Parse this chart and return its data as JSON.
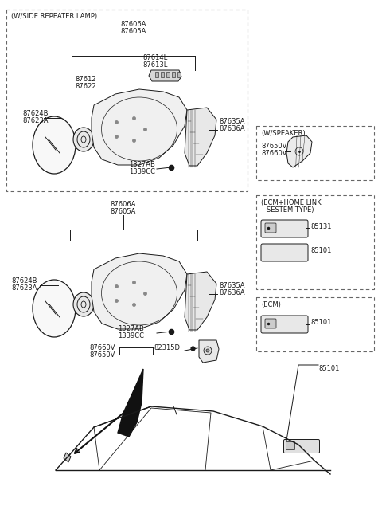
{
  "bg_color": "#ffffff",
  "line_color": "#1a1a1a",
  "dashed_color": "#666666",
  "fig_width": 4.8,
  "fig_height": 6.45,
  "dpi": 100,
  "labels": {
    "main_box_top": "(W/SIDE REPEATER LAMP)",
    "87606A_top": "87606A",
    "87605A_top": "87605A",
    "87614L": "87614L",
    "87613L": "87613L",
    "87612": "87612",
    "87622": "87622",
    "87624B_top": "87624B",
    "87623A_top": "87623A",
    "87635A_top": "87635A",
    "87636A_top": "87636A",
    "1327AB_top": "1327AB",
    "1339CC_top": "1339CC",
    "87606A_bot": "87606A",
    "87605A_bot": "87605A",
    "87624B_bot": "87624B",
    "87623A_bot": "87623A",
    "87635A_bot": "87635A",
    "87636A_bot": "87636A",
    "1327AB_bot": "1327AB",
    "1339CC_bot": "1339CC",
    "87660V_bot": "87660V",
    "87650V_bot": "87650V",
    "82315D": "82315D",
    "ws_box": "(W/SPEAKER)",
    "87650V_ws": "87650V",
    "87660V_ws": "87660V",
    "ecm_home_box": "(ECM+HOME LINK\n   SESTEM TYPE)",
    "85131": "85131",
    "85101_ecm_home": "85101",
    "ecm_box": "(ECM)",
    "85101_ecm": "85101",
    "85101_bottom": "85101"
  }
}
